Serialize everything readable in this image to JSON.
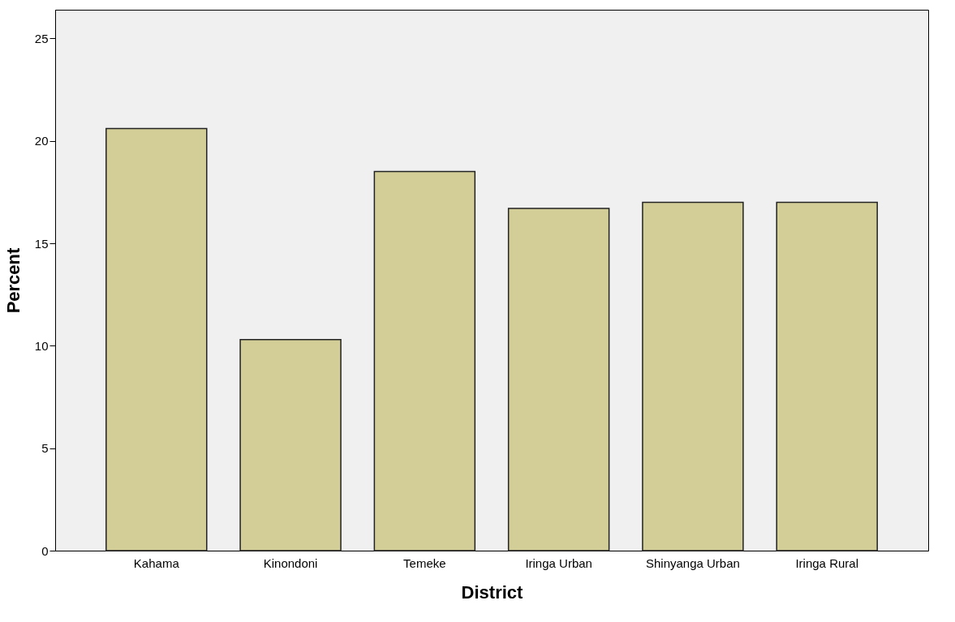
{
  "chart_data": {
    "type": "bar",
    "xlabel": "District",
    "ylabel": "Percent",
    "categories": [
      "Kahama",
      "Kinondoni",
      "Temeke",
      "Iringa Urban",
      "Shinyanga Urban",
      "Iringa Rural"
    ],
    "values": [
      20.6,
      10.3,
      18.5,
      16.7,
      17.0,
      17.0
    ],
    "color": "#d3ce97",
    "ylim": [
      0,
      26.4
    ],
    "yticks": [
      0,
      5,
      10,
      15,
      20,
      25
    ],
    "grid": false
  }
}
